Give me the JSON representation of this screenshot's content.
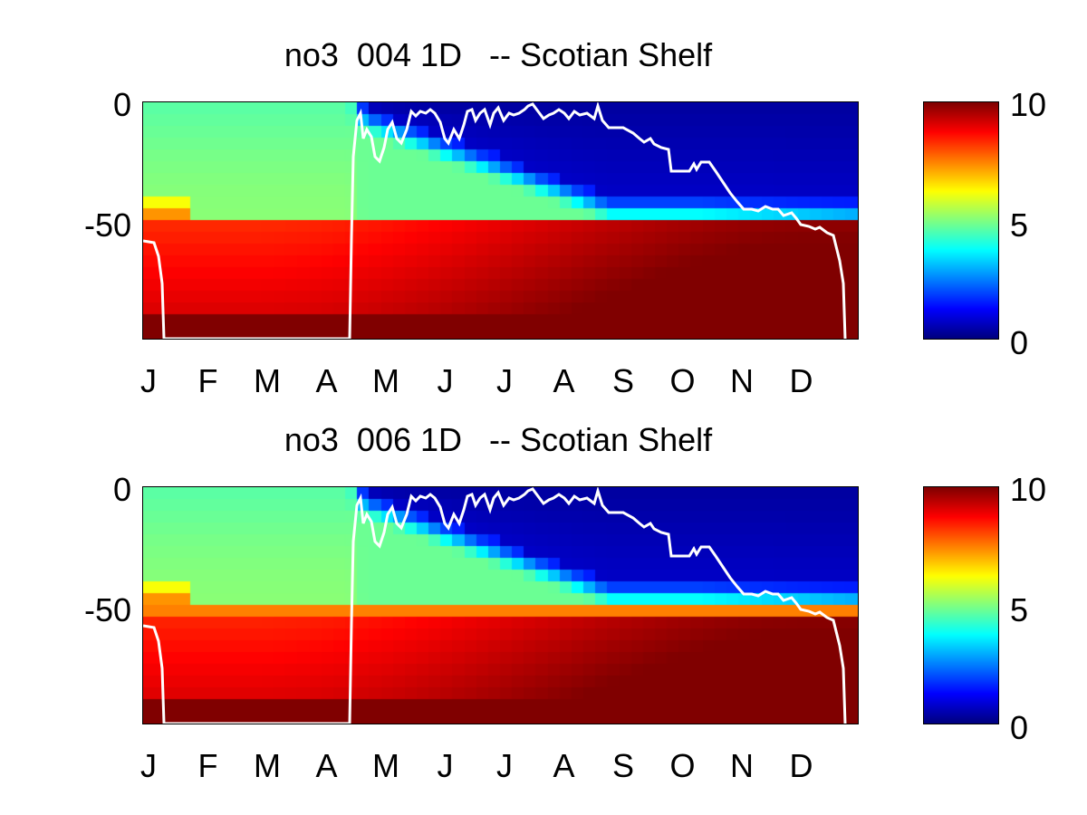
{
  "chart_data": [
    {
      "type": "heatmap",
      "title": "no3  004 1D   -- Scotian Shelf",
      "xlabel": "",
      "ylabel": "",
      "x_ticks": [
        "J",
        "F",
        "M",
        "A",
        "M",
        "J",
        "J",
        "A",
        "S",
        "O",
        "N",
        "D"
      ],
      "y_ticks": [
        "0",
        "-50"
      ],
      "ylim": [
        -100,
        0
      ],
      "colorbar": {
        "ticks": [
          "10",
          "5",
          "0"
        ],
        "range": [
          0,
          10
        ],
        "colormap": "jet"
      },
      "overlay_line_color": "#ffffff"
    },
    {
      "type": "heatmap",
      "title": "no3  006 1D   -- Scotian Shelf",
      "xlabel": "",
      "ylabel": "",
      "x_ticks": [
        "J",
        "F",
        "M",
        "A",
        "M",
        "J",
        "J",
        "A",
        "S",
        "O",
        "N",
        "D"
      ],
      "y_ticks": [
        "0",
        "-50"
      ],
      "ylim": [
        -100,
        0
      ],
      "colorbar": {
        "ticks": [
          "10",
          "5",
          "0"
        ],
        "range": [
          0,
          10
        ],
        "colormap": "jet"
      },
      "overlay_line_color": "#ffffff"
    }
  ]
}
